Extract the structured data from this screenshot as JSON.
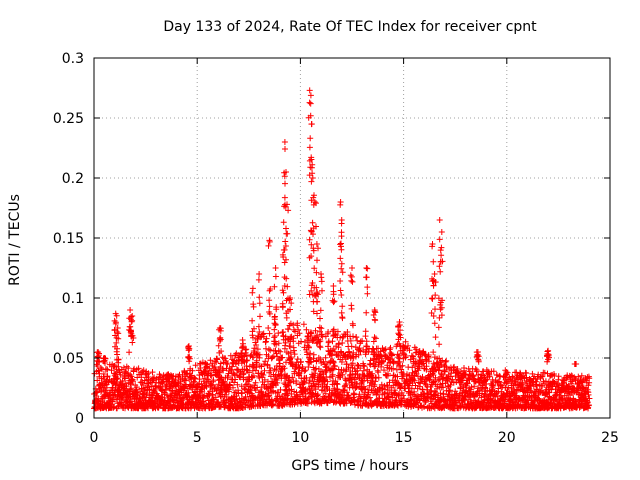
{
  "chart_data": {
    "type": "scatter",
    "title": "Day 133 of 2024, Rate Of TEC Index for receiver cpnt",
    "xlabel": "GPS time / hours",
    "ylabel": "ROTI / TECUs",
    "xlim": [
      0,
      25
    ],
    "ylim": [
      0,
      0.3
    ],
    "xticks": [
      0,
      5,
      10,
      15,
      20,
      25
    ],
    "xtick_labels": [
      "0",
      "5",
      "10",
      "15",
      "20",
      "25"
    ],
    "yticks": [
      0,
      0.05,
      0.1,
      0.15,
      0.2,
      0.25,
      0.3
    ],
    "ytick_labels": [
      "0",
      "0.05",
      "0.1",
      "0.15",
      "0.2",
      "0.25",
      "0.3"
    ],
    "grid": true,
    "marker": "+",
    "series": [
      {
        "name": "ROTI",
        "color": "#ff0000",
        "x_range": [
          0,
          24
        ],
        "baseline": {
          "x": [
            0,
            1,
            2,
            3,
            4,
            5,
            6,
            7,
            8,
            9,
            10,
            11,
            12,
            13,
            14,
            15,
            16,
            17,
            18,
            19,
            20,
            21,
            22,
            23,
            24
          ],
          "low": [
            0.008,
            0.008,
            0.008,
            0.008,
            0.008,
            0.008,
            0.008,
            0.008,
            0.01,
            0.01,
            0.012,
            0.012,
            0.012,
            0.01,
            0.01,
            0.01,
            0.008,
            0.008,
            0.008,
            0.008,
            0.008,
            0.008,
            0.008,
            0.008,
            0.008
          ],
          "high": [
            0.045,
            0.045,
            0.042,
            0.038,
            0.036,
            0.045,
            0.05,
            0.055,
            0.07,
            0.075,
            0.08,
            0.07,
            0.075,
            0.065,
            0.06,
            0.065,
            0.055,
            0.048,
            0.042,
            0.04,
            0.04,
            0.038,
            0.038,
            0.036,
            0.035
          ]
        },
        "peaks": [
          {
            "x": 0.2,
            "y": 0.055
          },
          {
            "x": 0.5,
            "y": 0.05
          },
          {
            "x": 1.05,
            "y": 0.087
          },
          {
            "x": 1.15,
            "y": 0.075
          },
          {
            "x": 1.75,
            "y": 0.09
          },
          {
            "x": 1.85,
            "y": 0.085
          },
          {
            "x": 4.6,
            "y": 0.06
          },
          {
            "x": 6.1,
            "y": 0.075
          },
          {
            "x": 7.2,
            "y": 0.065
          },
          {
            "x": 7.7,
            "y": 0.108
          },
          {
            "x": 8.0,
            "y": 0.12
          },
          {
            "x": 8.5,
            "y": 0.148
          },
          {
            "x": 8.8,
            "y": 0.125
          },
          {
            "x": 9.2,
            "y": 0.14
          },
          {
            "x": 9.25,
            "y": 0.23
          },
          {
            "x": 9.3,
            "y": 0.205
          },
          {
            "x": 9.35,
            "y": 0.178
          },
          {
            "x": 9.5,
            "y": 0.1
          },
          {
            "x": 10.45,
            "y": 0.273
          },
          {
            "x": 10.5,
            "y": 0.262
          },
          {
            "x": 10.55,
            "y": 0.245
          },
          {
            "x": 10.6,
            "y": 0.2
          },
          {
            "x": 10.7,
            "y": 0.18
          },
          {
            "x": 10.8,
            "y": 0.145
          },
          {
            "x": 11.0,
            "y": 0.12
          },
          {
            "x": 11.6,
            "y": 0.11
          },
          {
            "x": 11.95,
            "y": 0.18
          },
          {
            "x": 12.0,
            "y": 0.165
          },
          {
            "x": 12.5,
            "y": 0.125
          },
          {
            "x": 13.2,
            "y": 0.125
          },
          {
            "x": 13.6,
            "y": 0.09
          },
          {
            "x": 14.8,
            "y": 0.08
          },
          {
            "x": 16.4,
            "y": 0.145
          },
          {
            "x": 16.5,
            "y": 0.12
          },
          {
            "x": 16.75,
            "y": 0.165
          },
          {
            "x": 16.85,
            "y": 0.155
          },
          {
            "x": 18.6,
            "y": 0.055
          },
          {
            "x": 22.0,
            "y": 0.056
          },
          {
            "x": 23.3,
            "y": 0.045
          }
        ]
      }
    ]
  }
}
